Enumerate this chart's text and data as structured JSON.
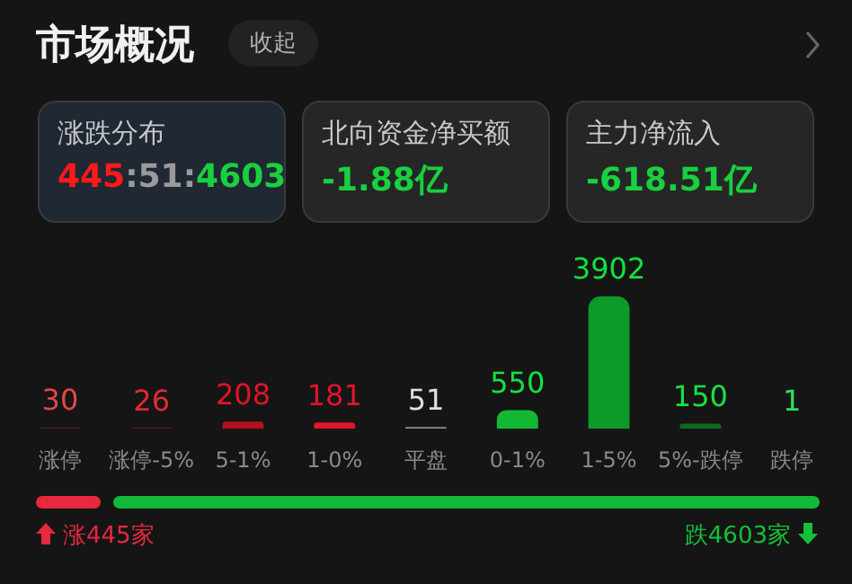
{
  "chart_data": {
    "type": "bar",
    "title": "市场概况",
    "categories": [
      "涨停",
      "涨停-5%",
      "5-1%",
      "1-0%",
      "平盘",
      "0-1%",
      "1-5%",
      "5%-跌停",
      "跌停"
    ],
    "values": [
      30,
      26,
      208,
      181,
      51,
      550,
      3902,
      150,
      1
    ],
    "colors": [
      "#5a1c1c",
      "#8c1a1e",
      "#b5101e",
      "#e3142a",
      "#8a8a8a",
      "#12b834",
      "#0d9a2a",
      "#0b6a20",
      "#0b3d1a"
    ],
    "data_labels": true,
    "annotations": [
      "收起",
      "涨跌分布",
      "445:51:4603",
      "北向资金净买额",
      "-1.88亿",
      "主力净流入",
      "-618.51亿",
      "涨445家",
      "跌4603家"
    ]
  }
}
